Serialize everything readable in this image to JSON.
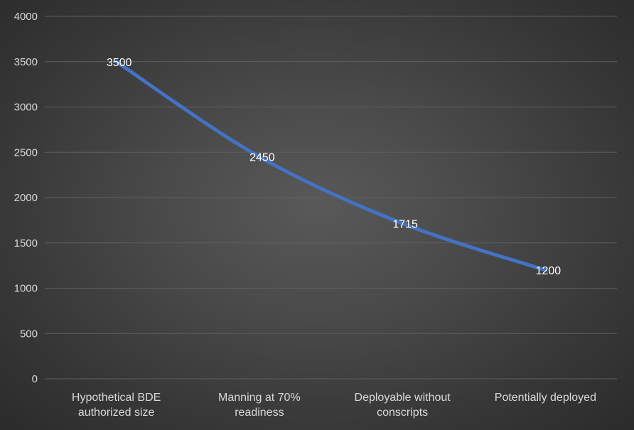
{
  "chart_data": {
    "type": "line",
    "categories": [
      [
        "Hypothetical BDE",
        "authorized size"
      ],
      [
        "Manning at 70%",
        "readiness"
      ],
      [
        "Deployable without",
        "conscripts"
      ],
      [
        "Potentially deployed"
      ]
    ],
    "series": [
      {
        "values": [
          3500,
          2450,
          1715,
          1200
        ],
        "color": "#4472c4"
      }
    ],
    "data_labels": [
      "3500",
      "2450",
      "1715",
      "1200"
    ],
    "ylim": [
      0,
      4000
    ],
    "yticks": [
      0,
      500,
      1000,
      1500,
      2000,
      2500,
      3000,
      3500,
      4000
    ],
    "grid": true,
    "legend": "none",
    "colors": {
      "background": "#404040",
      "gridline": "#5f5f5f",
      "text": "#d9d9d9",
      "label": "#ffffff"
    }
  }
}
